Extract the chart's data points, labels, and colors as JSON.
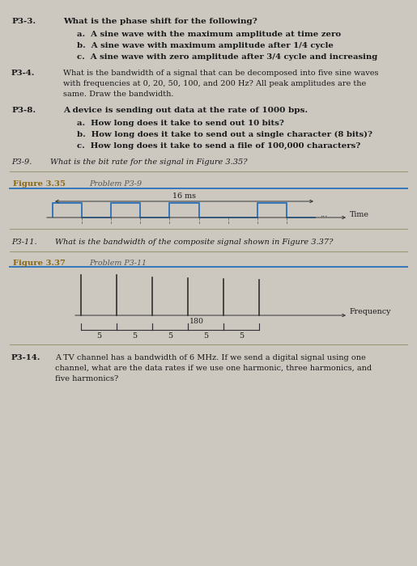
{
  "bg_color": "#ccc8c0",
  "signal_color": "#3377bb",
  "fig_line_color": "#3377bb",
  "sep_color": "#999977",
  "text_dark": "#1a1a1a",
  "fig_label_color": "#8B6914",
  "fig_prob_color": "#555555",
  "p33_label": "P3-3.",
  "p33_q": "What is the phase shift for the following?",
  "p33_a": "a.  A sine wave with the maximum amplitude at time zero",
  "p33_b": "b.  A sine wave with maximum amplitude after 1/4 cycle",
  "p33_c": "c.  A sine wave with zero amplitude after 3/4 cycle and increasing",
  "p34_label": "P3-4.",
  "p34_line1": "What is the bandwidth of a signal that can be decomposed into five sine waves",
  "p34_line2": "with frequencies at 0, 20, 50, 100, and 200 Hz? All peak amplitudes are the",
  "p34_line3": "same. Draw the bandwidth.",
  "p38_label": "P3-8.",
  "p38_q": "A device is sending out data at the rate of 1000 bps.",
  "p38_a": "a.  How long does it take to send out 10 bits?",
  "p38_b": "b.  How long does it take to send out a single character (8 bits)?",
  "p38_c": "c.  How long does it take to send a file of 100,000 characters?",
  "p39_label": "P3-9.",
  "p39_q": "What is the bit rate for the signal in Figure 3.35?",
  "fig335_label": "Figure 3.35",
  "fig335_prob": "Problem P3-9",
  "fig335_16ms": "16 ms",
  "fig335_time": "Time",
  "fig335_dots": "...",
  "p311_label": "P3-11.",
  "p311_q": "What is the bandwidth of the composite signal shown in Figure 3.37?",
  "fig337_label": "Figure 3.37",
  "fig337_prob": "Problem P3-11",
  "fig337_180": "180",
  "fig337_freq": "Frequency",
  "fig337_5": "5",
  "p314_label": "P3-14.",
  "p314_line1": "A TV channel has a bandwidth of 6 MHz. If we send a digital signal using one",
  "p314_line2": "channel, what are the data rates if we use one harmonic, three harmonics, and",
  "p314_line3": "five harmonics?"
}
